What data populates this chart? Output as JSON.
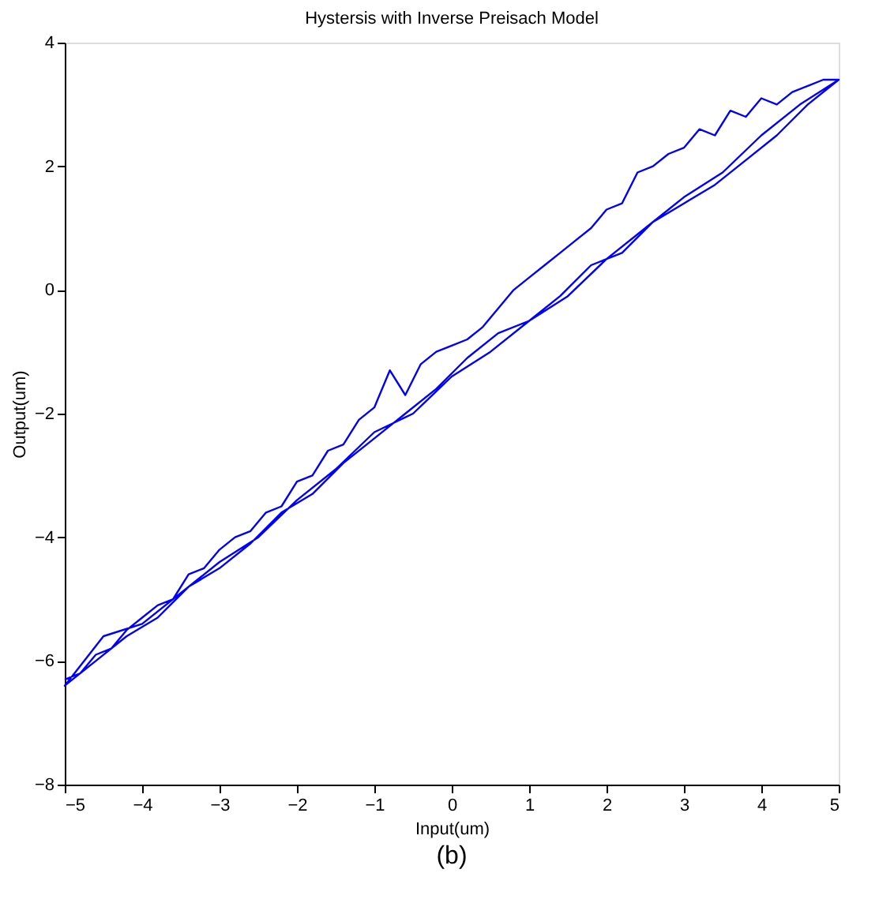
{
  "chart_data": {
    "type": "line",
    "title": "Hystersis with Inverse Preisach Model",
    "xlabel": "Input(um)",
    "ylabel": "Output(um)",
    "annotations": [
      "(b)"
    ],
    "xlim": [
      -5,
      5
    ],
    "ylim": [
      -8,
      4
    ],
    "xticks": [
      -5,
      -4,
      -3,
      -2,
      -1,
      0,
      1,
      2,
      3,
      4,
      5
    ],
    "yticks": [
      -8,
      -6,
      -4,
      -2,
      0,
      2,
      4
    ],
    "grid": false,
    "line_style": "solid",
    "marker": "none",
    "series": [
      {
        "color": "#0000ff",
        "x": [
          -5,
          -4.8,
          -4.6,
          -4.4,
          -4.2,
          -4,
          -3.8,
          -3.6,
          -3.4,
          -3.2,
          -3,
          -2.8,
          -2.6,
          -2.4,
          -2.2,
          -2,
          -1.8,
          -1.6,
          -1.4,
          -1.2,
          -1,
          -0.8,
          -0.6,
          -0.4,
          -0.2,
          0,
          0.2,
          0.4,
          0.6,
          0.8,
          1,
          1.2,
          1.4,
          1.6,
          1.8,
          2,
          2.2,
          2.4,
          2.6,
          2.8,
          3,
          3.2,
          3.4,
          3.6,
          3.8,
          4,
          4.2,
          4.4,
          4.6,
          4.8,
          5,
          4.6,
          4.2,
          3.8,
          3.4,
          3.0,
          2.6,
          2.2,
          1.8,
          1.4,
          1.0,
          0.6,
          0.2,
          -0.2,
          -0.6,
          -1.0,
          -1.4,
          -1.8,
          -2.2,
          -2.6,
          -3.0,
          -3.4,
          -3.8,
          -4.2,
          -4.6,
          -5,
          -4.5,
          -4,
          -3.5,
          -3,
          -2.5,
          -2,
          -1.5,
          -1,
          -0.5,
          0,
          0.5,
          1,
          1.5,
          2,
          2.5,
          3,
          3.5,
          4,
          4.5,
          5
        ],
        "values": [
          -6.3,
          -6.2,
          -5.9,
          -5.8,
          -5.5,
          -5.3,
          -5.1,
          -5.0,
          -4.6,
          -4.5,
          -4.2,
          -4.0,
          -3.9,
          -3.6,
          -3.5,
          -3.1,
          -3.0,
          -2.6,
          -2.5,
          -2.1,
          -1.9,
          -1.3,
          -1.7,
          -1.2,
          -1.0,
          -0.9,
          -0.8,
          -0.6,
          -0.3,
          0.0,
          0.2,
          0.4,
          0.6,
          0.8,
          1.0,
          1.3,
          1.4,
          1.9,
          2.0,
          2.2,
          2.3,
          2.6,
          2.5,
          2.9,
          2.8,
          3.1,
          3.0,
          3.2,
          3.3,
          3.4,
          3.4,
          3.0,
          2.5,
          2.1,
          1.7,
          1.4,
          1.1,
          0.6,
          0.4,
          -0.1,
          -0.5,
          -0.7,
          -1.1,
          -1.6,
          -2.0,
          -2.4,
          -2.8,
          -3.3,
          -3.6,
          -4.1,
          -4.5,
          -4.8,
          -5.3,
          -5.6,
          -6.0,
          -6.4,
          -5.6,
          -5.4,
          -4.9,
          -4.4,
          -4.0,
          -3.4,
          -2.9,
          -2.3,
          -2.0,
          -1.4,
          -1.0,
          -0.5,
          -0.1,
          0.5,
          1.0,
          1.5,
          1.9,
          2.5,
          3.0,
          3.4
        ]
      }
    ]
  }
}
